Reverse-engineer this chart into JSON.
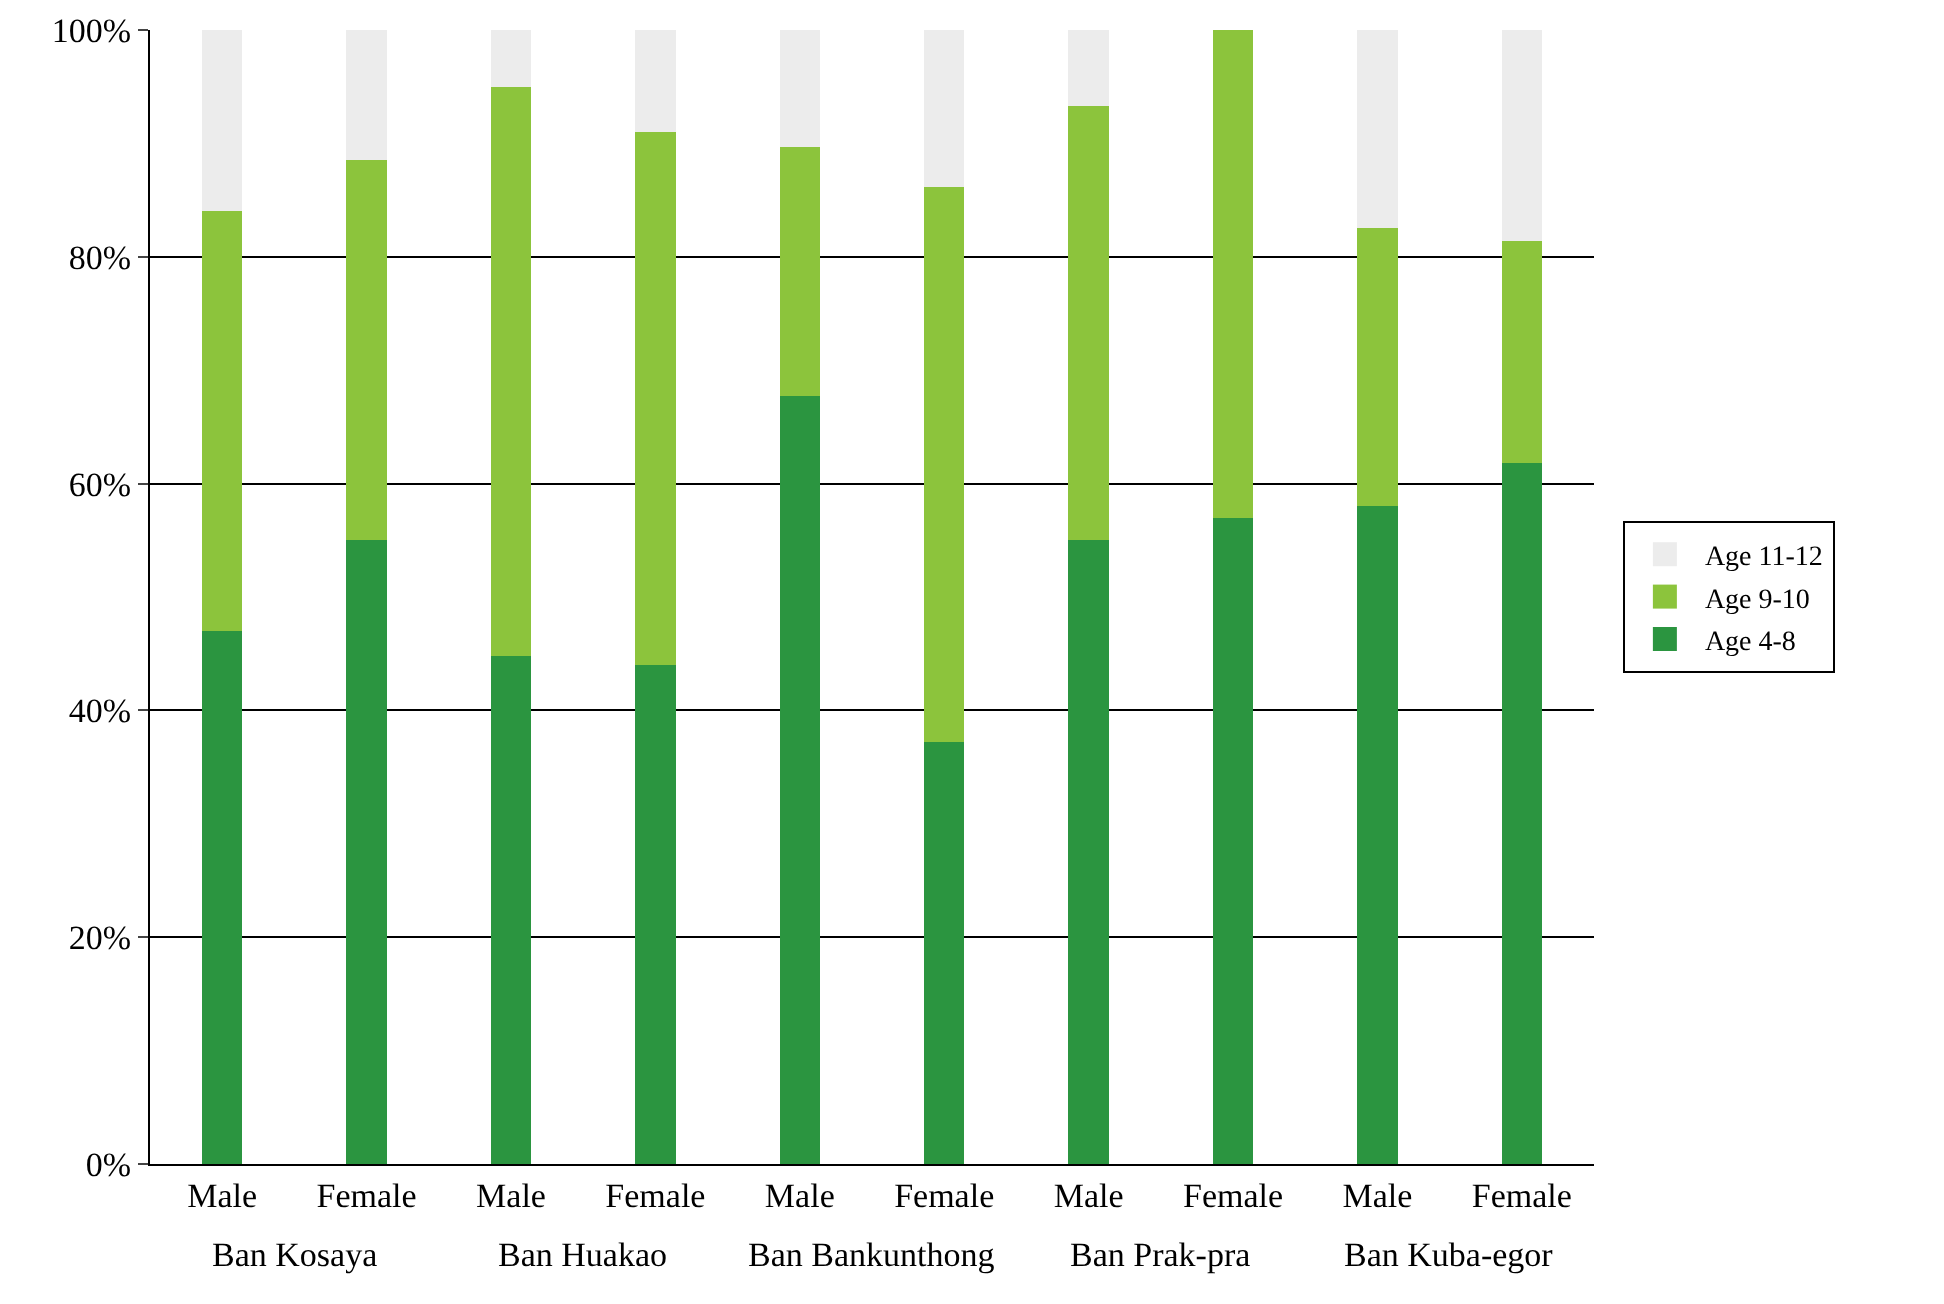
{
  "chart_data": {
    "type": "bar",
    "stacked": true,
    "categories": [
      "Male",
      "Female",
      "Male",
      "Female",
      "Male",
      "Female",
      "Male",
      "Female",
      "Male",
      "Female"
    ],
    "series": [
      {
        "name": "Age 4-8",
        "color": "#2b9540",
        "values": [
          47,
          55,
          44.8,
          44,
          67.7,
          37.2,
          55,
          57,
          58,
          61.8
        ]
      },
      {
        "name": "Age 9-10",
        "color": "#8cc43c",
        "values": [
          37,
          33.5,
          50.2,
          47,
          22,
          49,
          38.3,
          43,
          24.5,
          19.6
        ]
      },
      {
        "name": "Age 11-12",
        "color": "#ececec",
        "values": [
          16,
          11.5,
          5,
          9,
          10.3,
          13.8,
          6.7,
          0,
          17.5,
          18.6
        ]
      }
    ],
    "annotations": [
      "Ban Kosaya",
      "Ban Huakao",
      "Ban Bankunthong",
      "Ban Prak-pra",
      "Ban Kuba-egor"
    ],
    "ylim": [
      0,
      100
    ],
    "yticks": [
      {
        "value": 0,
        "label": "0%"
      },
      {
        "value": 20,
        "label": "20%"
      },
      {
        "value": 40,
        "label": "40%"
      },
      {
        "value": 60,
        "label": "60%"
      },
      {
        "value": 80,
        "label": "80%"
      },
      {
        "value": 100,
        "label": "100%"
      }
    ],
    "grid": "y",
    "legend": "right"
  }
}
